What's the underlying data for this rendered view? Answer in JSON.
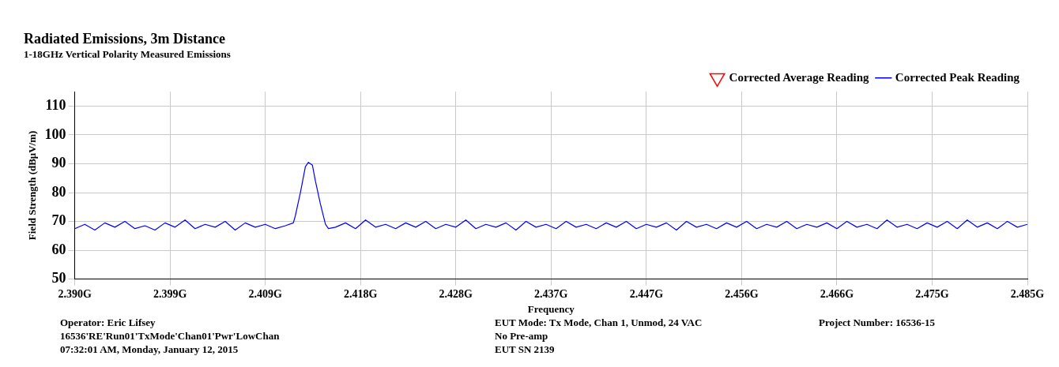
{
  "chart_data": {
    "type": "line",
    "title": "Radiated Emissions, 3m Distance",
    "subtitle": "1-18GHz Vertical Polarity Measured Emissions",
    "xlabel": "Frequency",
    "ylabel": "Field Strength (dBμV/m)",
    "xlim": [
      2.39,
      2.485
    ],
    "xticks": [
      {
        "value": 2.39,
        "label": "2.390G"
      },
      {
        "value": 2.3995,
        "label": "2.399G"
      },
      {
        "value": 2.409,
        "label": "2.409G"
      },
      {
        "value": 2.4185,
        "label": "2.418G"
      },
      {
        "value": 2.428,
        "label": "2.428G"
      },
      {
        "value": 2.4375,
        "label": "2.437G"
      },
      {
        "value": 2.447,
        "label": "2.447G"
      },
      {
        "value": 2.4565,
        "label": "2.456G"
      },
      {
        "value": 2.466,
        "label": "2.466G"
      },
      {
        "value": 2.4755,
        "label": "2.475G"
      },
      {
        "value": 2.485,
        "label": "2.485G"
      }
    ],
    "ylim": [
      50,
      115
    ],
    "yticks": [
      50,
      60,
      70,
      80,
      90,
      100,
      110
    ],
    "grid": true,
    "legend": "top right",
    "series": [
      {
        "name": "Corrected Average Reading",
        "type": "scatter",
        "color": "#ff0000",
        "marker": "triangle"
      },
      {
        "name": "Corrected Peak Reading",
        "color": "#0000ff",
        "marker": "none",
        "line_style": "solid",
        "x": [
          2.39,
          2.391,
          2.392,
          2.393,
          2.394,
          2.395,
          2.396,
          2.397,
          2.398,
          2.399,
          2.4,
          2.401,
          2.402,
          2.403,
          2.404,
          2.405,
          2.406,
          2.407,
          2.408,
          2.409,
          2.41,
          2.411,
          2.4118,
          2.412,
          2.4125,
          2.413,
          2.4133,
          2.4137,
          2.414,
          2.4145,
          2.415,
          2.4153,
          2.416,
          2.417,
          2.418,
          2.419,
          2.42,
          2.421,
          2.422,
          2.423,
          2.424,
          2.425,
          2.426,
          2.427,
          2.428,
          2.429,
          2.43,
          2.431,
          2.432,
          2.433,
          2.434,
          2.435,
          2.436,
          2.437,
          2.438,
          2.439,
          2.44,
          2.441,
          2.442,
          2.443,
          2.444,
          2.445,
          2.446,
          2.447,
          2.448,
          2.449,
          2.45,
          2.451,
          2.452,
          2.453,
          2.454,
          2.455,
          2.456,
          2.457,
          2.458,
          2.459,
          2.46,
          2.461,
          2.462,
          2.463,
          2.464,
          2.465,
          2.466,
          2.467,
          2.468,
          2.469,
          2.47,
          2.471,
          2.472,
          2.473,
          2.474,
          2.475,
          2.476,
          2.477,
          2.478,
          2.479,
          2.48,
          2.481,
          2.482,
          2.483,
          2.484,
          2.485
        ],
        "values": [
          67.5,
          69,
          67,
          69.5,
          68,
          70,
          67.5,
          68.5,
          67,
          69.5,
          68,
          70.5,
          67.5,
          69,
          68,
          70,
          67,
          69.5,
          68,
          69,
          67.5,
          68.5,
          69.5,
          72,
          80,
          89,
          90.5,
          89.5,
          84,
          76,
          69,
          67.5,
          68,
          69.5,
          67.5,
          70.5,
          68,
          69,
          67.5,
          69.5,
          68,
          70,
          67.5,
          69,
          68,
          70.5,
          67.5,
          69,
          68,
          69.5,
          67,
          70,
          68,
          69,
          67.5,
          70,
          68,
          69,
          67.5,
          69.5,
          68,
          70,
          67.5,
          69,
          68,
          69.5,
          67,
          70,
          68,
          69,
          67.5,
          69.5,
          68,
          70,
          67.5,
          69,
          68,
          70,
          67.5,
          69,
          68,
          69.5,
          67.5,
          70,
          68,
          69,
          67.5,
          70.5,
          68,
          69,
          67.5,
          69.5,
          68,
          70,
          67.5,
          70.5,
          68,
          69.5,
          67.5,
          70,
          68,
          69
        ]
      }
    ],
    "annotations": [
      "Operator: Eric Lifsey",
      "16536'RE'Run01'TxMode'Chan01'Pwr'LowChan",
      "07:32:01 AM, Monday, January 12, 2015",
      "EUT Mode: Tx Mode, Chan 1, Unmod, 24 VAC",
      "No Pre-amp",
      "EUT SN 2139",
      "Project Number: 16536-15"
    ]
  }
}
